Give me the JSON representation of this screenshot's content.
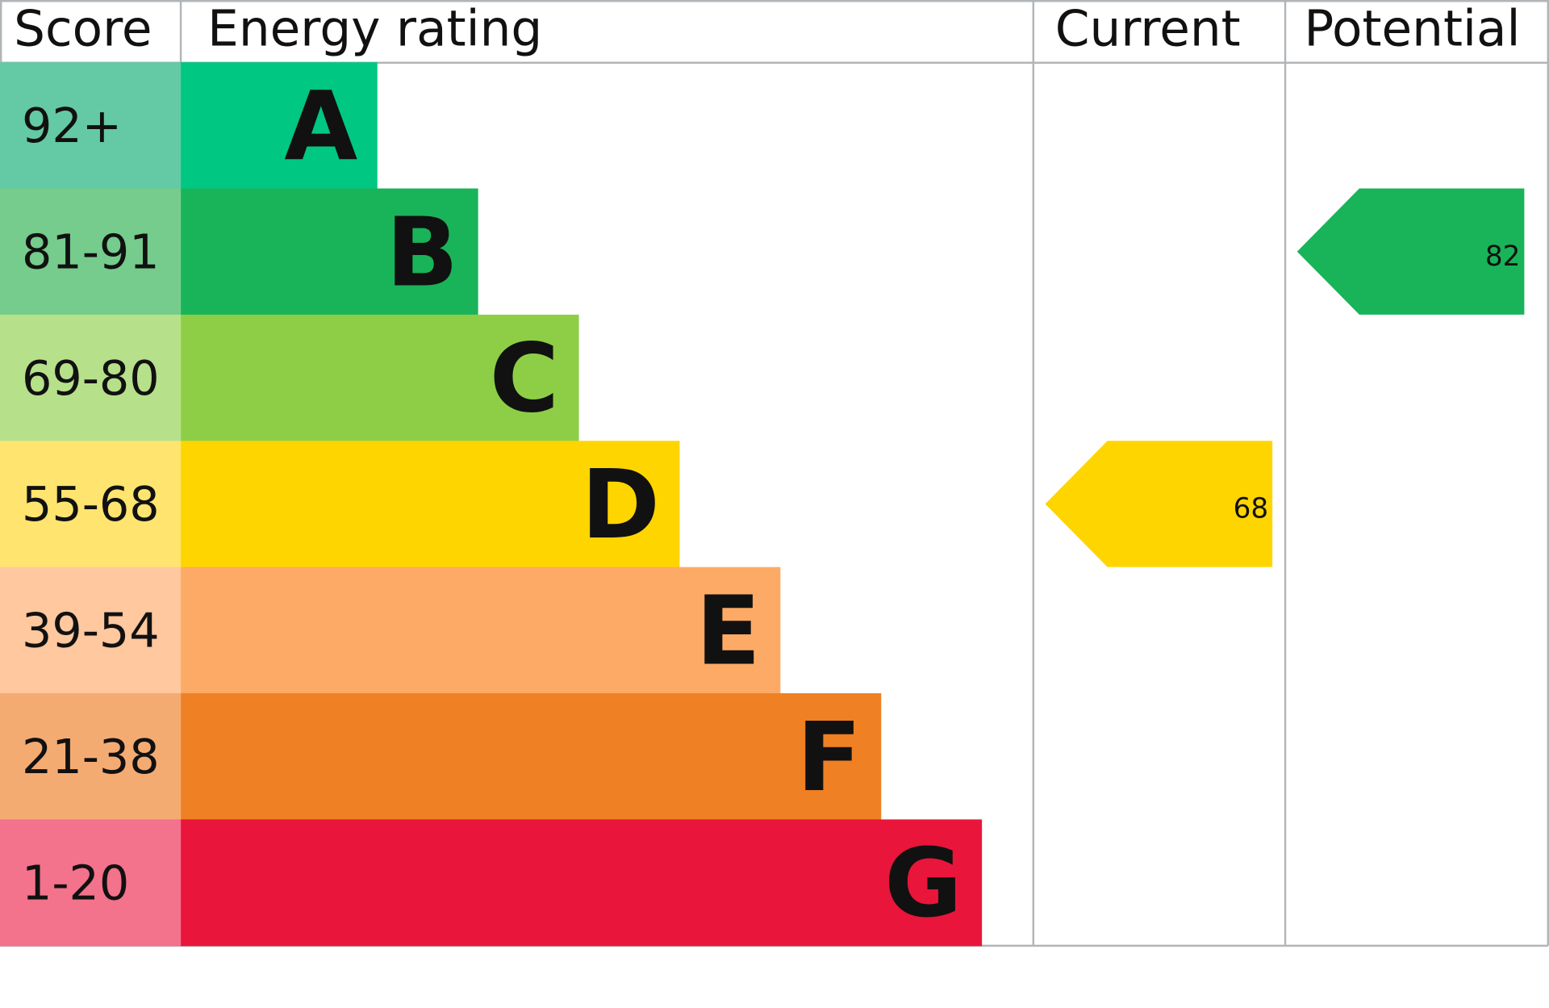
{
  "chart_data": {
    "type": "bar",
    "headers": {
      "score": "Score",
      "rating": "Energy rating",
      "current": "Current",
      "potential": "Potential"
    },
    "bands": [
      {
        "letter": "A",
        "range": "92+",
        "color": "#00c781",
        "score_color": "#64c9a5"
      },
      {
        "letter": "B",
        "range": "81-91",
        "color": "#19b459",
        "score_color": "#75cc8c"
      },
      {
        "letter": "C",
        "range": "69-80",
        "color": "#8dce46",
        "score_color": "#b6e08a"
      },
      {
        "letter": "D",
        "range": "55-68",
        "color": "#ffd500",
        "score_color": "#ffe46f"
      },
      {
        "letter": "E",
        "range": "39-54",
        "color": "#fcaa65",
        "score_color": "#ffc89e"
      },
      {
        "letter": "F",
        "range": "21-38",
        "color": "#ef8023",
        "score_color": "#f4ab72"
      },
      {
        "letter": "G",
        "range": "1-20",
        "color": "#e9153b",
        "score_color": "#f3728c"
      }
    ],
    "current": {
      "value": "68",
      "band": "D",
      "color": "#ffd500"
    },
    "potential": {
      "value": "82",
      "band": "B",
      "color": "#19b459"
    }
  }
}
